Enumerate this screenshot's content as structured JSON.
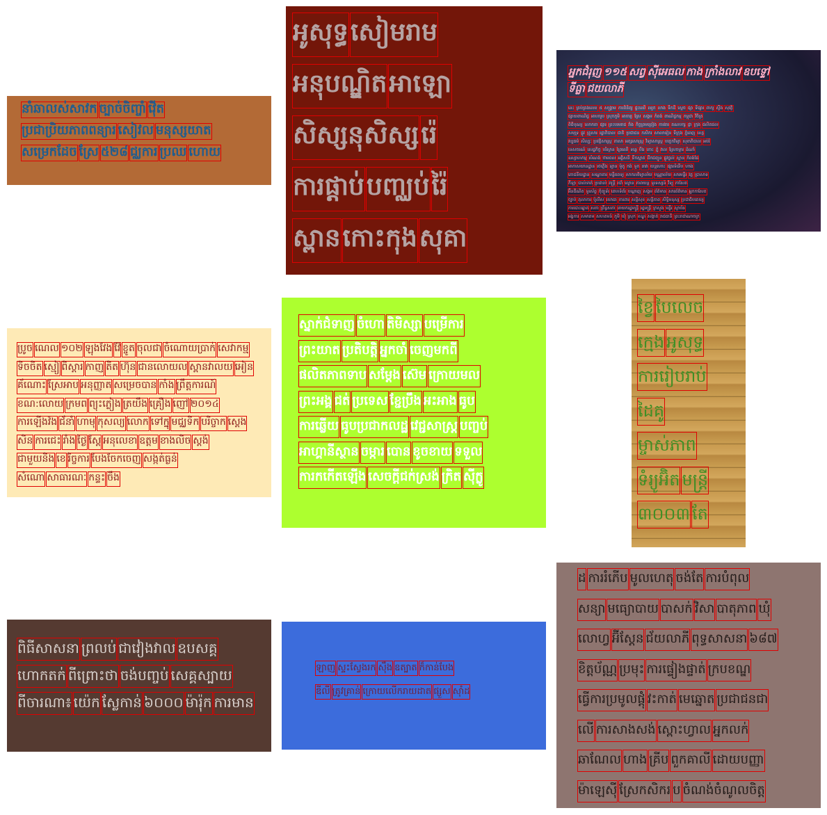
{
  "panels": [
    {
      "id": "p1",
      "lines": [
        [
          "នាំឆាលស់សាវក",
          "ច្បាច់ចិញ្ចាំ",
          "វ៉ើត"
        ],
        [
          "ប្រជាប្រិយភាពពន្យារ",
          "សៀវល",
          "មនុស្សយាត"
        ],
        [
          "សម្រេកដែច",
          "ស្រែ",
          "៥២៨",
          "ជ្ឈការ",
          "ប្រឈ",
          "ហោយ"
        ]
      ]
    },
    {
      "id": "p2",
      "lines": [
        [
          "អូសុទ្ធ",
          "សៀមរាម"
        ],
        [
          "អនុបណ្ឌិត",
          "អាឡោ"
        ],
        [
          "សិស្សនុសិស្ស",
          "រ៉េ"
        ],
        [
          "ការផ្តាប់",
          "បញ្ឈប់",
          "រ៉ៃ"
        ],
        [
          "ស្ពាន",
          "កោះកុង",
          "សុគា"
        ]
      ]
    },
    {
      "id": "p3",
      "header": [
        "អ្នកជំរុញ",
        "១១៥",
        "សព្វ",
        "ស៊ីអេធល",
        "កាង",
        "ក្រាំងលាវ",
        "ឧបទ្ទៅ"
      ],
      "header2": [
        "ទីធ្លា",
        "ជយលាភី"
      ],
      "lines": [
        [
          "នេះ",
          "គ្រប់គ្រងលេខ",
          "៥",
          "សង្គ្រាម",
          "ការពិនិត្យ",
          "ផ្ទះឈើ",
          "ឈូក",
          "លាង",
          "ទឹកដី",
          "ស្តេច",
          "ផ្សា",
          "ទីផ្សារ",
          "ពាក្យ",
          "ស្ទឹង",
          "សុវត្ថិ"
        ],
        [
          "ផ្សាយពាណិជ្ជ",
          "អាហារូប",
          "ស្រុកភូមិ",
          "អាចារ្យ",
          "ស្រែ",
          "សង្គម",
          "កំពង់",
          "ពាណិជ្ជកម្ម",
          "កម្ពុជា",
          "វិចិត្រ"
        ],
        [
          "ពិធីបុណ្យ",
          "លោកតា",
          "ផ្សារ",
          "ព្រះបរមរាជ",
          "វាំង",
          "កិច្ចព្រមព្រៀង",
          "ការងារ",
          "គណបក្ស",
          "ផ្កា",
          "ក្រុង",
          "ផលិតផល"
        ],
        [
          "សមុទ្រ",
          "ផ្លូវ",
          "គ្រួសារ",
          "រដ្ឋាភិបាល",
          "ជាតិ",
          "ប្រជាជន",
          "កសិករ",
          "សាលារៀន",
          "ទីក្រុង",
          "ភ្នំពេញ",
          "ខេត្ត"
        ],
        [
          "វប្បធម៌",
          "សិល្បៈ",
          "ប្រវត្តិសាស្ត្រ",
          "ភាសា",
          "អក្សរសាស្ត្រ",
          "វិទ្យាសាស្ត្រ",
          "បច្ចេកវិទ្យា",
          "សុខាភិបាល",
          "អប់រំ"
        ],
        [
          "ទេសចរណ៍",
          "សេដ្ឋកិច្ច",
          "បរិស្ថាន",
          "ព្រៃឈើ",
          "ទន្លេ",
          "បឹង",
          "កោះ",
          "ភ្នំ",
          "វាល",
          "ស្រែចម្ការ",
          "ដំណាំ"
        ],
        [
          "ឧស្សាហកម្ម",
          "សំណង់",
          "ថាមពល",
          "អគ្គិសនី",
          "ទឹកស្អាត",
          "ដឹកជញ្ជូន",
          "ផ្លូវថ្នល់",
          "ស្ពាន",
          "កំពង់ផែ"
        ],
        [
          "អាកាសយានដ្ឋាន",
          "រថភ្លើង",
          "ឡាន",
          "ម៉ូតូ",
          "កង់",
          "ទូក",
          "នាវា",
          "យន្តហោះ",
          "ផ្សារទំនើប",
          "ហាង"
        ],
        [
          "ភោជនីយដ្ឋាន",
          "សណ្ឋាគារ",
          "មន្ទីរពេទ្យ",
          "សាកលវិទ្យាល័យ",
          "បណ្ណាល័យ",
          "សារមន្ទីរ",
          "វត្ត",
          "ប្រាសាទ"
        ],
        [
          "កីឡា",
          "បាល់ទាត់",
          "ប្រដាល់",
          "តន្ត្រី",
          "របាំ",
          "ល្ខោន",
          "ភាពយន្ត",
          "ទូរទស្សន៍",
          "វិទ្យុ",
          "កាសែត"
        ],
        [
          "អ៊ីនធឺណិត",
          "ទូរស័ព្ទ",
          "កុំព្យូទ័រ",
          "គេហទំព័រ",
          "បណ្តាញ",
          "សង្គម",
          "ព័ត៌មាន",
          "សារព័ត៌មាន",
          "អ្នកកាសែត"
        ],
        [
          "ច្បាប់",
          "តុលាការ",
          "ប៉ូលីស",
          "យោធា",
          "ការពារ",
          "សន្តិសុខ",
          "សន្តិភាព",
          "សិទ្ធិមនុស្ស",
          "ប្រជាធិបតេយ្យ"
        ],
        [
          "ការបោះឆ្នោត",
          "សភា",
          "ព្រឹទ្ធសភា",
          "នាយករដ្ឋមន្ត្រី",
          "រដ្ឋមន្ត្រី",
          "ក្រសួង",
          "មន្ទីរ",
          "ស្ថាប័ន"
        ],
        [
          "អង្គការ",
          "សមាគម",
          "សហគមន៍",
          "ភូមិ",
          "ឃុំ",
          "ស្រុក",
          "ខណ្ឌ",
          "សង្កាត់",
          "រាជធានី",
          "ព្រះរាជាណាចក្រ"
        ]
      ]
    },
    {
      "id": "p4",
      "lines": [
        [
          "ប្រូច",
          "ណេល",
          "១០២",
          "ឡុងវែង",
          "វ៉ែ",
          "ខ្ចូត",
          "ចុលជា",
          "ចំណោយប្រាក់",
          "សេវាកម្ម"
        ],
        [
          "ទិចចិត",
          "ស្មៀ",
          "ពិស្តារ",
          "កាញ",
          "តិត",
          "ហ៊ុន",
          "ជានលោយល",
          "ស្ពានវាលយ",
          "អៀន"
        ],
        [
          "គ័ណោះ",
          "ស្រែអាប",
          "អនុញ្ញាត",
          "សម្រេចបាន",
          "កាំង",
          "ព្រឹត្តការណ៍"
        ],
        [
          "ខណ:លោយ",
          "ក្រមព",
          "ព្យុះភ្លៀង",
          "ត្រយឹង",
          "គ្រឿង",
          "ញៅ",
          "២០១៤"
        ],
        [
          "ការឡើងវ៉ង",
          "ជ័នាំ",
          "ហាមុ",
          "កុសល្យ",
          "លោក",
          "ទៅក្នុ",
          "មជ្ឈទិក",
          "បរិច្ចាក",
          "ស្តេង"
        ],
        [
          "សិន",
          "ការជេះ",
          "រាំង",
          "ថ្ងៃ",
          "ស្តែ",
          "អនុលេខា",
          "ឧត្តម",
          "ខាងលិច",
          "ស្តង់"
        ],
        [
          "ជាមួយនិង",
          "ខេ",
          "រិច្ចការ",
          "បែងចែកចេញ",
          "សង្កត់ធ្ងន់"
        ],
        [
          "សំណោ",
          "សាធារណៈ",
          "កន្ទះ",
          "ចឹង"
        ]
      ]
    },
    {
      "id": "p5",
      "lines": [
        [
          "ស្នាក់ជំទាញ",
          "ចំហោ",
          "តិមិស្សា",
          "បម្រើការ"
        ],
        [
          "ព្រះយាត",
          "ប្រតិបត្តិ",
          "អ្នកចាំ",
          "ចេញមកពី"
        ],
        [
          "ផលិតភាពទាប",
          "សម្តែង",
          "ស៊េម",
          "ក្រោយមល"
        ],
        [
          "ព្រះអង្គ",
          "ជត់",
          "ប្រទេស",
          "ខ្ជែប្រឹង",
          "អះអាង",
          "ធូប"
        ],
        [
          "ការឆ្លើយ",
          "ធូបប្រជាកលដ្ឋ",
          "វេជ្ជសាស្ត្រ",
          "បញ្ចប់"
        ],
        [
          "អាហ្គានីស្ថាន",
          "ចម្ការ",
          "បោន",
          "ខូចខាយ",
          "ទទួល"
        ],
        [
          "ការកកើតឡើង",
          "សេចក្តីជក់ស្រង់",
          "ក្រិត",
          "ស៊ីក្លូ"
        ]
      ]
    },
    {
      "id": "p6",
      "lines": [
        [
          "ខ្វៃ",
          "បៃលេច"
        ],
        [
          "ក្មេង",
          "អូសុទ្ធ"
        ],
        [
          "ការរៀបរាប់"
        ],
        [
          "ដៃគូ"
        ],
        [
          "ម្ចាស់ភាព"
        ],
        [
          "ទំរ្យូអ៊ិត",
          "មន្ត្រី"
        ],
        [
          "៣០០៣",
          "តែ"
        ]
      ]
    },
    {
      "id": "p7",
      "lines": [
        [
          "ពិធីសាសនា",
          "ព្រលប់",
          "ជាវៀងវាល",
          "ឧបសគ្គ"
        ],
        [
          "ហោកតក់",
          "ពីព្រោះថា",
          "ចង់បញ្ចប់",
          "សេគ្គស្បាយ"
        ],
        [
          "ពីចារណា៖",
          "យ៉េក",
          "ស្លែកាន់",
          "៦០០០",
          "ម៉ារ៉ុក",
          "ការមាន"
        ]
      ]
    },
    {
      "id": "p8",
      "lines": [
        [
          "ឡាញ",
          "ស្ទះស្វែងរក",
          "ស៊ឹង",
          "ឧត្បាត",
          "ក៏កាន់បែង"
        ],
        [
          "ឌីលី",
          "ត្រូវគ្រាន់",
          "ក្រោយលើករាយដាត",
          "ផ្សួស",
          "ស៊ាំដ"
        ]
      ]
    },
    {
      "id": "p9",
      "lines": [
        [
          "ដ",
          "ការរំភើប",
          "មូលហេតុ",
          "ចង់តែ",
          "ការបំពុល"
        ],
        [
          "សន្យា",
          "មធ្យោបាយ",
          "បាសក់",
          "វិសា",
          "បាតុភាព",
          "ឃុំ"
        ],
        [
          "លោហ្វ",
          "អ៊ីស្តែន",
          "ជ័យលាភី",
          "ពុទ្ធសាសនា",
          "៦៨៧"
        ],
        [
          "ខិត្តប័ណ្ណ",
          "ប្រមុះ",
          "ការផ្ទៀងផ្ទាត់",
          "ក្របខណ្ឌ"
        ],
        [
          "ធ្វើការប្រមូលផ្តុំ",
          "វះកាត់",
          "មេឆ្នោត",
          "ប្រជាជនជា"
        ],
        [
          "លើ",
          "ការសាងសង់",
          "ស្ពោះហ្វាល",
          "អ្នកលក់"
        ],
        [
          "ឆាណែល",
          "ហាង",
          "គ្រីប",
          "ពួកគាលី",
          "ដោយបញ្ញា"
        ],
        [
          "ម៉ាឡេស៊ី",
          "ស្រែកសិករ",
          "ប",
          "ចំណង់ចំណូលចិត្ត"
        ]
      ]
    }
  ]
}
